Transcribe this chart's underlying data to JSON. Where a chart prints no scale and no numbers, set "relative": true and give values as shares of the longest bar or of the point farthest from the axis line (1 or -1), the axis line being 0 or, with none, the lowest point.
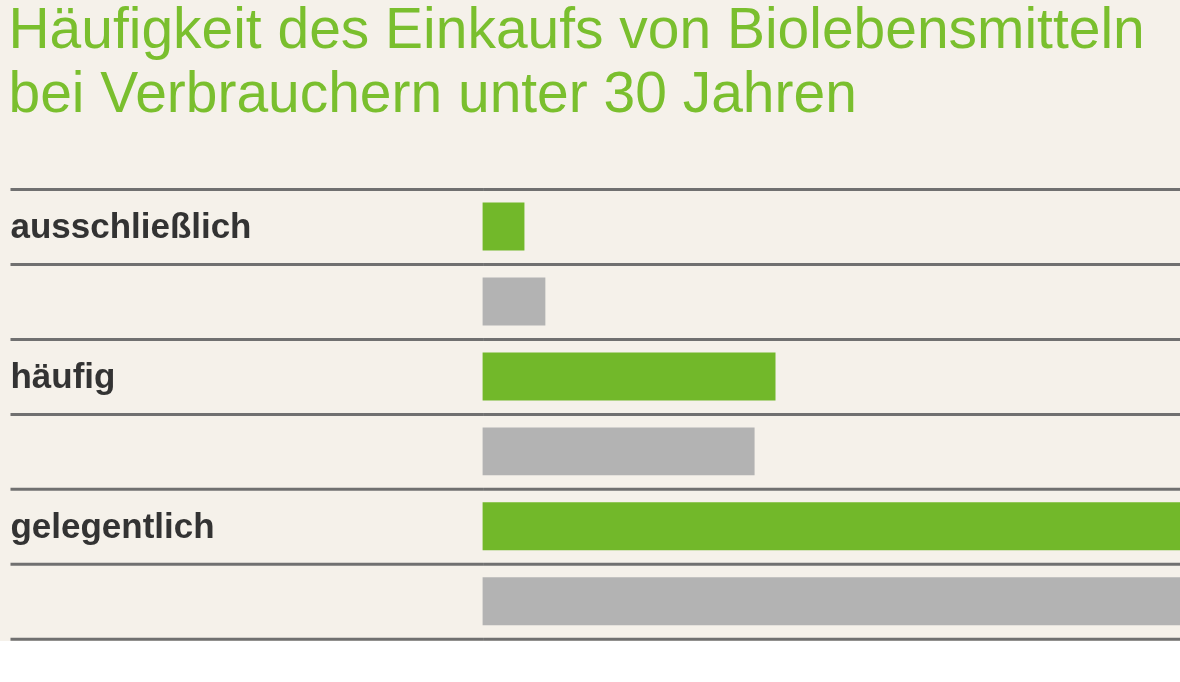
{
  "chart_data": {
    "type": "bar",
    "title": "Häufigkeit des Einkaufs von Biolebensmitteln bei Verbrauchern unter 30 Jahren",
    "orientation": "horizontal",
    "relative": true,
    "categories": [
      "ausschließlich",
      null,
      "häufig",
      null,
      "gelegentlich",
      null
    ],
    "values": [
      0.06,
      0.09,
      0.42,
      0.39,
      1,
      1
    ],
    "colors": [
      "#72b82a",
      "#b3b3b3",
      "#72b82a",
      "#b3b3b3",
      "#72b82a",
      "#b3b3b3"
    ],
    "grid": "y"
  }
}
